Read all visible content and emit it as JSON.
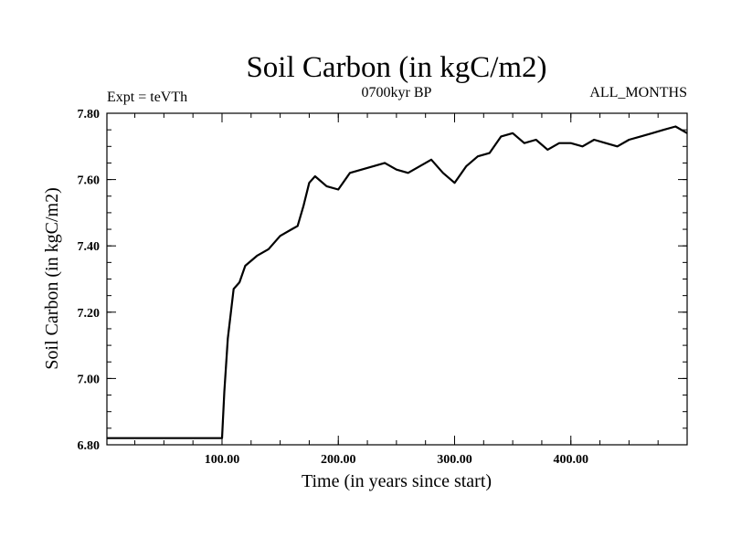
{
  "chart_data": {
    "type": "line",
    "title": "Soil Carbon (in kgC/m2)",
    "subtitle_left": "Expt = teVTh",
    "subtitle_center": "0700kyr BP",
    "subtitle_right": "ALL_MONTHS",
    "xlabel": "Time (in years since start)",
    "ylabel": "Soil Carbon (in kgC/m2)",
    "xlim": [
      1,
      500
    ],
    "ylim": [
      6.8,
      7.8
    ],
    "x_ticks": [
      {
        "value": 100,
        "label": "100.00"
      },
      {
        "value": 200,
        "label": "200.00"
      },
      {
        "value": 300,
        "label": "300.00"
      },
      {
        "value": 400,
        "label": "400.00"
      }
    ],
    "y_ticks": [
      {
        "value": 6.8,
        "label": "6.80"
      },
      {
        "value": 7.0,
        "label": "7.00"
      },
      {
        "value": 7.2,
        "label": "7.20"
      },
      {
        "value": 7.4,
        "label": "7.40"
      },
      {
        "value": 7.6,
        "label": "7.60"
      },
      {
        "value": 7.8,
        "label": "7.80"
      }
    ],
    "grid": false,
    "series": [
      {
        "color": "#000000",
        "x": [
          1,
          100,
          102,
          105,
          110,
          115,
          120,
          130,
          140,
          150,
          160,
          165,
          170,
          175,
          180,
          190,
          200,
          210,
          220,
          240,
          250,
          260,
          270,
          280,
          290,
          300,
          310,
          320,
          330,
          340,
          350,
          360,
          370,
          380,
          390,
          400,
          410,
          420,
          430,
          440,
          450,
          460,
          470,
          480,
          490,
          500
        ],
        "y": [
          6.82,
          6.82,
          6.96,
          7.12,
          7.27,
          7.29,
          7.34,
          7.37,
          7.39,
          7.43,
          7.45,
          7.46,
          7.52,
          7.59,
          7.61,
          7.58,
          7.57,
          7.62,
          7.63,
          7.65,
          7.63,
          7.62,
          7.64,
          7.66,
          7.62,
          7.59,
          7.64,
          7.67,
          7.68,
          7.73,
          7.74,
          7.71,
          7.72,
          7.69,
          7.71,
          7.71,
          7.7,
          7.72,
          7.71,
          7.7,
          7.72,
          7.73,
          7.74,
          7.75,
          7.76,
          7.74
        ]
      }
    ]
  }
}
